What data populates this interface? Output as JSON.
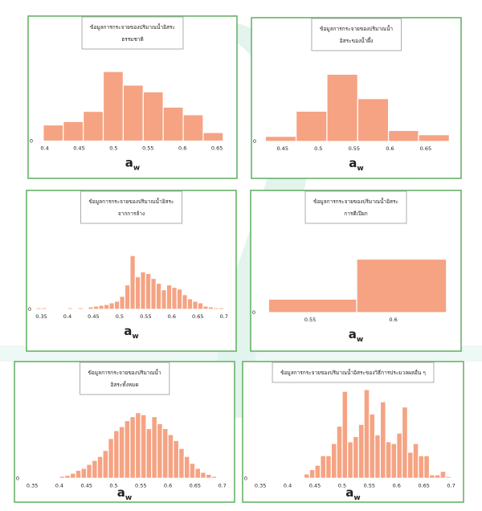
{
  "chart_data": [
    {
      "type": "histogram",
      "title": [
        "ข้อมูลการกระจายของปริมาณน้ำอิสระ",
        "ธรรมชาติ"
      ],
      "xlabel": "a",
      "xlabel_subscript": "w",
      "bins": [
        0.398,
        0.427,
        0.456,
        0.485,
        0.514,
        0.543,
        0.572,
        0.601,
        0.63,
        0.659
      ],
      "values": [
        19,
        23,
        35,
        82,
        66,
        58,
        40,
        31,
        10
      ],
      "color": "#f5a383",
      "xlim": [
        0.39,
        0.665
      ],
      "xticks": [
        0.4,
        0.45,
        0.5,
        0.55,
        0.6,
        0.65
      ],
      "ylim": [
        0,
        90
      ],
      "yticks": [
        0
      ]
    },
    {
      "type": "histogram",
      "title": [
        "ข้อมูลการกระจายของปริมาณน้ำ",
        "อิสระของน้ำผึ้ง"
      ],
      "xlabel": "a",
      "xlabel_subscript": "w",
      "bins": [
        0.426,
        0.469,
        0.512,
        0.555,
        0.598,
        0.64,
        0.683
      ],
      "values": [
        6,
        36,
        80,
        51,
        13,
        8
      ],
      "color": "#f5a383",
      "xlim": [
        0.42,
        0.686
      ],
      "xticks": [
        0.45,
        0.5,
        0.55,
        0.6,
        0.65
      ],
      "ylim": [
        0,
        90
      ],
      "yticks": [
        0
      ]
    },
    {
      "type": "histogram",
      "title": [
        "ข้อมูลการกระจายของปริมาณน้ำอิสระ",
        "จากการล้าง"
      ],
      "xlabel": "a",
      "xlabel_subscript": "w",
      "bins": [
        0.34,
        0.35,
        0.36,
        0.37,
        0.38,
        0.39,
        0.4,
        0.41,
        0.42,
        0.43,
        0.44,
        0.45,
        0.46,
        0.47,
        0.48,
        0.49,
        0.5,
        0.51,
        0.52,
        0.53,
        0.54,
        0.55,
        0.56,
        0.57,
        0.58,
        0.59,
        0.6,
        0.61,
        0.62,
        0.63,
        0.64,
        0.65,
        0.66,
        0.67,
        0.68,
        0.69,
        0.7
      ],
      "values": [
        2,
        2,
        0,
        0,
        0,
        0,
        2,
        1,
        2,
        1,
        3,
        4,
        5,
        6,
        8,
        10,
        16,
        30,
        66,
        40,
        46,
        44,
        38,
        32,
        24,
        30,
        27,
        25,
        18,
        13,
        10,
        8,
        4,
        3,
        2,
        2
      ],
      "color": "#f5a383",
      "xlim": [
        0.34,
        0.705
      ],
      "xticks": [
        0.35,
        0.4,
        0.45,
        0.5,
        0.55,
        0.6,
        0.65,
        0.7
      ],
      "ylim": [
        0,
        75
      ],
      "yticks": [
        0
      ]
    },
    {
      "type": "histogram",
      "title": [
        "ข้อมูลการกระจายของปริมาณน้ำอิสระ",
        "การตีเปียก"
      ],
      "xlabel": "a",
      "xlabel_subscript": "w",
      "bins": [
        0.525,
        0.578,
        0.632
      ],
      "values": [
        15,
        60
      ],
      "color": "#f5a383",
      "xlim": [
        0.52,
        0.635
      ],
      "xticks": [
        0.55,
        0.6
      ],
      "ylim": [
        0,
        65
      ],
      "yticks": [
        0
      ]
    },
    {
      "type": "histogram",
      "title": [
        "ข้อมูลการกระจายของปริมาณน้ำ",
        "อิสระทั้งหมด"
      ],
      "xlabel": "a",
      "xlabel_subscript": "w",
      "bins": [
        0.34,
        0.35,
        0.36,
        0.37,
        0.38,
        0.39,
        0.4,
        0.41,
        0.42,
        0.43,
        0.44,
        0.45,
        0.46,
        0.47,
        0.48,
        0.49,
        0.5,
        0.51,
        0.52,
        0.53,
        0.54,
        0.55,
        0.56,
        0.57,
        0.58,
        0.59,
        0.6,
        0.61,
        0.62,
        0.63,
        0.64,
        0.65,
        0.66,
        0.67,
        0.68,
        0.69,
        0.7
      ],
      "values": [
        1,
        1,
        0,
        0,
        0,
        1,
        2,
        3,
        5,
        8,
        10,
        14,
        18,
        22,
        28,
        40,
        48,
        52,
        58,
        62,
        66,
        64,
        50,
        62,
        55,
        50,
        44,
        38,
        30,
        22,
        15,
        10,
        6,
        4,
        2,
        1
      ],
      "color": "#f5a383",
      "xlim": [
        0.335,
        0.705
      ],
      "xticks": [
        0.35,
        0.4,
        0.45,
        0.5,
        0.55,
        0.6,
        0.65,
        0.7
      ],
      "ylim": [
        0,
        75
      ],
      "yticks": [
        0
      ]
    },
    {
      "type": "histogram",
      "title": [
        "ข้อมูลการกระจายของปริมาณน้ำอิสระของวิธีการประมวลผลอื่น ๆ"
      ],
      "xlabel": "a",
      "xlabel_subscript": "w",
      "bins": [
        0.34,
        0.35,
        0.36,
        0.37,
        0.38,
        0.39,
        0.4,
        0.41,
        0.42,
        0.43,
        0.44,
        0.45,
        0.46,
        0.47,
        0.48,
        0.49,
        0.5,
        0.51,
        0.52,
        0.53,
        0.54,
        0.55,
        0.56,
        0.57,
        0.58,
        0.59,
        0.6,
        0.61,
        0.62,
        0.63,
        0.64,
        0.65,
        0.66,
        0.67,
        0.68,
        0.69,
        0.7
      ],
      "values": [
        1,
        1,
        1,
        0,
        0,
        0,
        1,
        0,
        0,
        5,
        10,
        15,
        26,
        26,
        40,
        60,
        100,
        42,
        48,
        62,
        102,
        74,
        50,
        88,
        42,
        40,
        52,
        82,
        30,
        40,
        26,
        26,
        4,
        4,
        8,
        2
      ],
      "color": "#f5a383",
      "xlim": [
        0.335,
        0.705
      ],
      "xticks": [
        0.35,
        0.4,
        0.45,
        0.5,
        0.55,
        0.6,
        0.65,
        0.7
      ],
      "ylim": [
        0,
        110
      ],
      "yticks": [
        0
      ]
    }
  ]
}
